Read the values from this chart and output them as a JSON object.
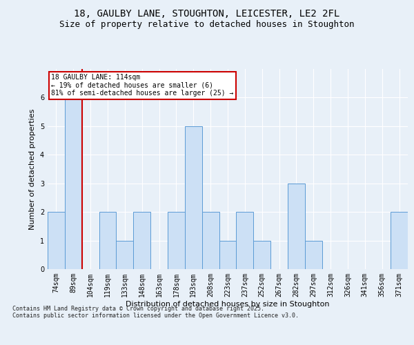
{
  "title_line1": "18, GAULBY LANE, STOUGHTON, LEICESTER, LE2 2FL",
  "title_line2": "Size of property relative to detached houses in Stoughton",
  "xlabel": "Distribution of detached houses by size in Stoughton",
  "ylabel": "Number of detached properties",
  "footnote": "Contains HM Land Registry data © Crown copyright and database right 2025.\nContains public sector information licensed under the Open Government Licence v3.0.",
  "bins": [
    "74sqm",
    "89sqm",
    "104sqm",
    "119sqm",
    "133sqm",
    "148sqm",
    "163sqm",
    "178sqm",
    "193sqm",
    "208sqm",
    "223sqm",
    "237sqm",
    "252sqm",
    "267sqm",
    "282sqm",
    "297sqm",
    "312sqm",
    "326sqm",
    "341sqm",
    "356sqm",
    "371sqm"
  ],
  "values": [
    2,
    6,
    0,
    2,
    1,
    2,
    0,
    2,
    5,
    2,
    1,
    2,
    1,
    0,
    3,
    1,
    0,
    0,
    0,
    0,
    2
  ],
  "bar_color": "#cce0f5",
  "bar_edge_color": "#5b9bd5",
  "red_line_x": 1.5,
  "highlight_line_color": "#cc0000",
  "annotation_text": "18 GAULBY LANE: 114sqm\n← 19% of detached houses are smaller (6)\n81% of semi-detached houses are larger (25) →",
  "annotation_box_color": "#ffffff",
  "annotation_box_edge": "#cc0000",
  "ylim": [
    0,
    7
  ],
  "yticks": [
    0,
    1,
    2,
    3,
    4,
    5,
    6
  ],
  "bg_color": "#e8f0f8",
  "plot_bg_color": "#e8f0f8",
  "grid_color": "#ffffff",
  "title_fontsize": 10,
  "subtitle_fontsize": 9,
  "axis_label_fontsize": 8,
  "tick_fontsize": 7,
  "annot_fontsize": 7
}
